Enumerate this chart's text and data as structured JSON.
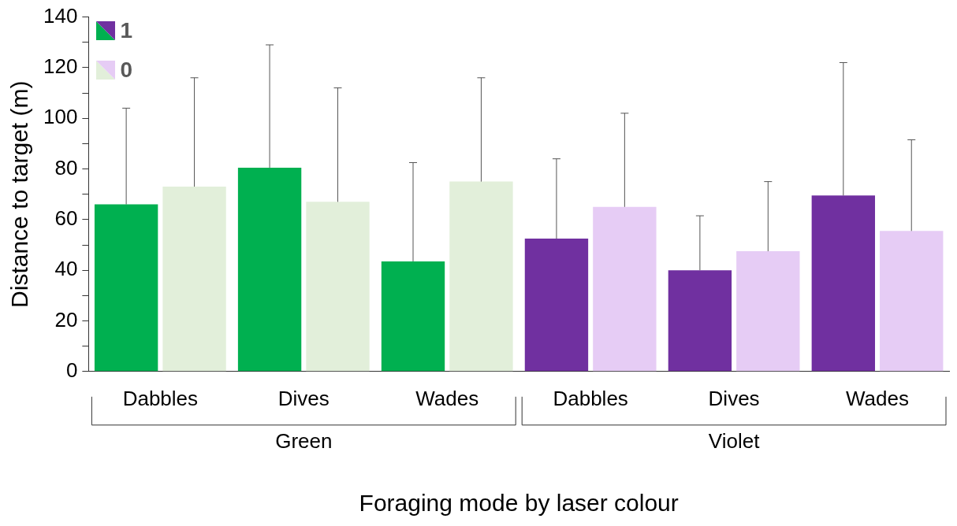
{
  "chart_data": {
    "type": "bar",
    "ylabel": "Distance to target (m)",
    "xlabel": "Foraging mode by laser colour",
    "categories": [
      "Dabbles",
      "Dives",
      "Wades",
      "Dabbles",
      "Dives",
      "Wades"
    ],
    "series": [
      {
        "name": "1",
        "colors": [
          "#00b050",
          "#00b050",
          "#00b050",
          "#7030a0",
          "#7030a0",
          "#7030a0"
        ],
        "values": [
          66,
          80.5,
          43.5,
          52.5,
          40,
          69.5
        ],
        "errors": [
          [
            66,
            104
          ],
          [
            80.5,
            129
          ],
          [
            43.5,
            82.5
          ],
          [
            52.5,
            84
          ],
          [
            40,
            61.5
          ],
          [
            69.5,
            122
          ]
        ]
      },
      {
        "name": "0",
        "colors": [
          "#e2efda",
          "#e2efda",
          "#e2efda",
          "#e6ccf5",
          "#e6ccf5",
          "#e6ccf5"
        ],
        "values": [
          73,
          67,
          75,
          65,
          47.5,
          55.5
        ],
        "errors": [
          [
            73,
            116
          ],
          [
            67,
            112
          ],
          [
            75,
            116
          ],
          [
            65,
            102
          ],
          [
            47.5,
            75
          ],
          [
            55.5,
            91.5
          ]
        ]
      }
    ],
    "annotations": [
      "Green",
      "Violet"
    ],
    "ylim": [
      0,
      140
    ],
    "yticks": [
      0,
      {
        "value": 10,
        "label": null
      },
      20,
      {
        "value": 30,
        "label": null
      },
      40,
      {
        "value": 50,
        "label": null
      },
      60,
      {
        "value": 70,
        "label": null
      },
      80,
      {
        "value": 90,
        "label": null
      },
      100,
      {
        "value": 110,
        "label": null
      },
      120,
      {
        "value": 130,
        "label": null
      },
      140
    ],
    "grid": false,
    "legend": "top left"
  }
}
